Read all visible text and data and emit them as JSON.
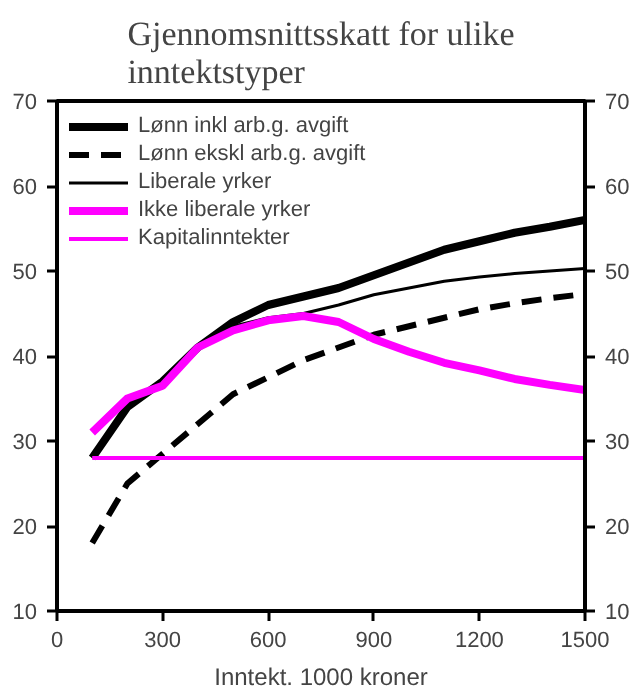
{
  "chart_data": {
    "type": "line",
    "title": "Gjennomsnittsskatt for ulike\ninntektstyper",
    "xlabel": "Inntekt. 1000 kroner",
    "x": [
      100,
      200,
      300,
      400,
      500,
      600,
      700,
      800,
      900,
      1000,
      1100,
      1200,
      1300,
      1400,
      1500
    ],
    "series": [
      {
        "name": "Lønn inkl arb.g. avgift",
        "color": "#000000",
        "line_style": "solid",
        "values": [
          28,
          34,
          37,
          41,
          44,
          46,
          47,
          48,
          49.5,
          51,
          52.5,
          53.5,
          54.5,
          55.2,
          56
        ]
      },
      {
        "name": "Lønn ekskl arb.g. avgift",
        "color": "#000000",
        "line_style": "dashed",
        "values": [
          18,
          25,
          28.5,
          32,
          35.5,
          37.5,
          39.5,
          41,
          42.5,
          43.5,
          44.5,
          45.5,
          46.2,
          46.8,
          47.3
        ]
      },
      {
        "name": "Liberale yrker",
        "color": "#000000",
        "line_style": "solid",
        "values": [
          28,
          34,
          37,
          41,
          43.5,
          44.5,
          45,
          46,
          47.2,
          48,
          48.8,
          49.3,
          49.7,
          50,
          50.3
        ]
      },
      {
        "name": "Ikke liberale yrker",
        "color": "#ff00ff",
        "line_style": "solid",
        "values": [
          31,
          35,
          36.5,
          41,
          43,
          44.2,
          44.7,
          44,
          42,
          40.5,
          39.2,
          38.3,
          37.3,
          36.6,
          36
        ]
      },
      {
        "name": "Kapitalinntekter",
        "color": "#ff00ff",
        "line_style": "solid",
        "values": [
          28,
          28,
          28,
          28,
          28,
          28,
          28,
          28,
          28,
          28,
          28,
          28,
          28,
          28,
          28
        ]
      }
    ],
    "xlim": [
      0,
      1500
    ],
    "xticks": [
      0,
      300,
      600,
      900,
      1200,
      1500
    ],
    "ylim": [
      10,
      70
    ],
    "yticks": [
      10,
      20,
      30,
      40,
      50,
      60,
      70
    ],
    "y2lim": [
      10,
      70
    ],
    "y2ticks": [
      10,
      20,
      30,
      40,
      50,
      60,
      70
    ],
    "grid": false,
    "legend": "top left",
    "marker": "none"
  }
}
